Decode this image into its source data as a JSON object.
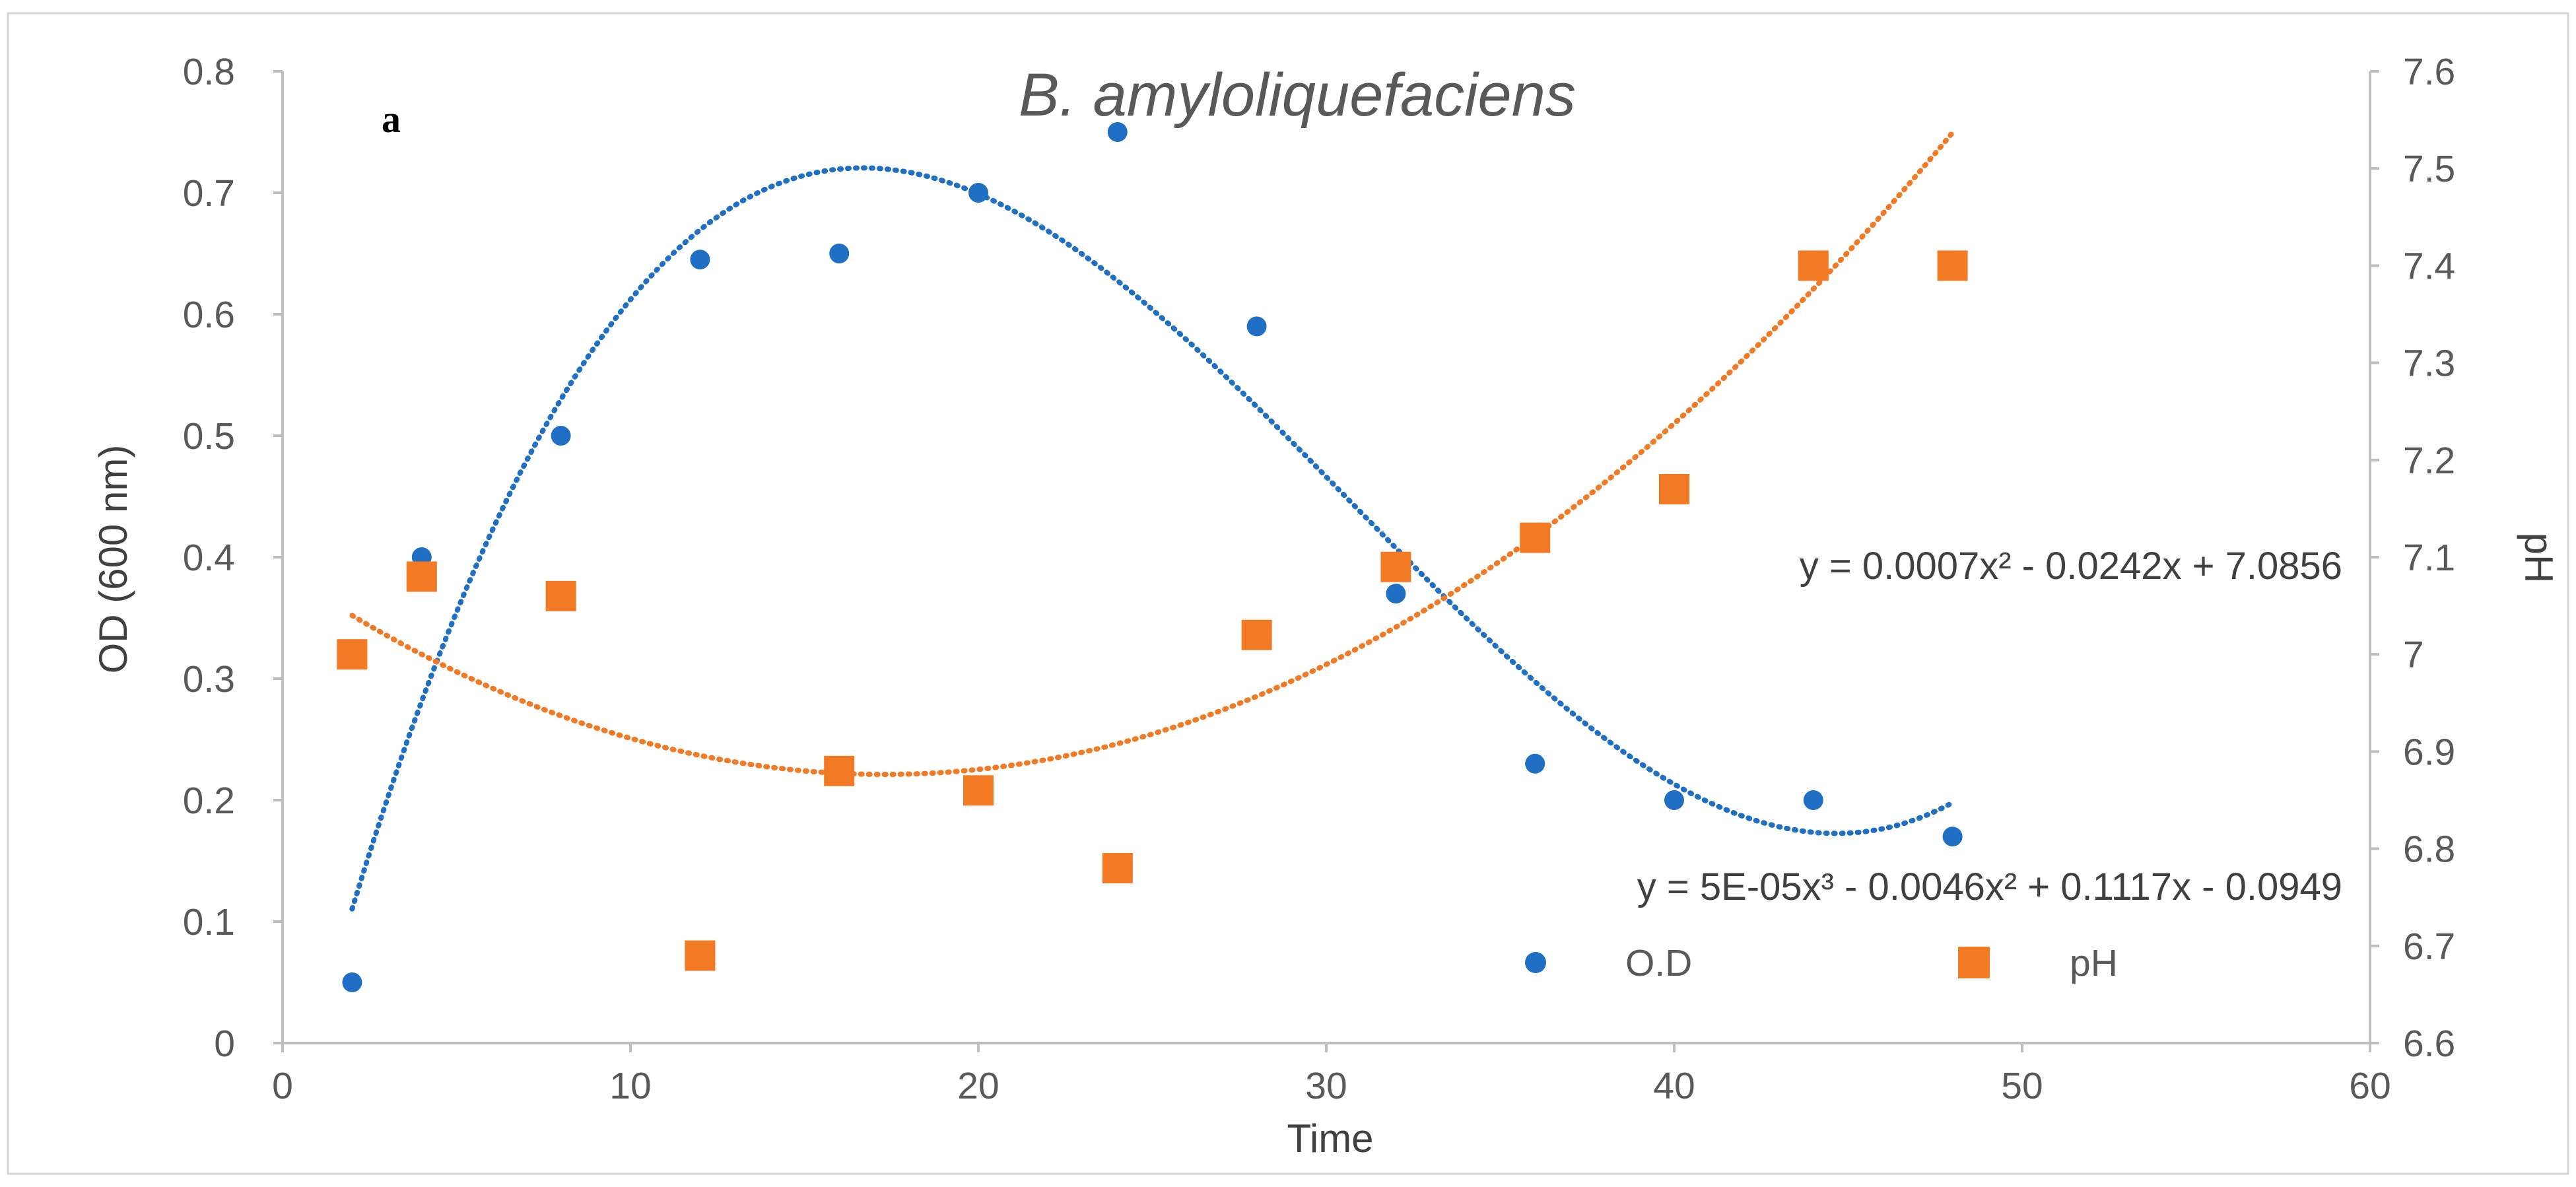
{
  "chart_data": {
    "type": "scatter",
    "title": "B. amyloliquefaciens",
    "panel_label": "a",
    "xlabel": "Time",
    "ylabel_left": "OD (600 nm)",
    "ylabel_right": "pH",
    "xlim": [
      0,
      60
    ],
    "ylim_left": [
      0,
      0.8
    ],
    "ylim_right": [
      6.6,
      7.6
    ],
    "x_ticks": [
      "0",
      "10",
      "20",
      "30",
      "40",
      "50",
      "60"
    ],
    "y_left_ticks": [
      "0",
      "0.1",
      "0.2",
      "0.3",
      "0.4",
      "0.5",
      "0.6",
      "0.7",
      "0.8"
    ],
    "y_right_ticks": [
      "6.6",
      "6.7",
      "6.8",
      "6.9",
      "7",
      "7.1",
      "7.2",
      "7.3",
      "7.4",
      "7.5",
      "7.6"
    ],
    "grid": false,
    "legend_position": "bottom-right",
    "series": [
      {
        "name": "O.D",
        "axis": "left",
        "marker": "circle",
        "color": "#1F6FC5",
        "x": [
          2,
          4,
          8,
          12,
          16,
          20,
          24,
          28,
          32,
          36,
          40,
          44,
          48
        ],
        "values": [
          0.05,
          0.4,
          0.5,
          0.645,
          0.65,
          0.7,
          0.75,
          0.59,
          0.37,
          0.23,
          0.2,
          0.2,
          0.17
        ]
      },
      {
        "name": "pH",
        "axis": "right",
        "marker": "square",
        "color": "#F27A24",
        "x": [
          2,
          4,
          8,
          12,
          16,
          20,
          24,
          28,
          32,
          36,
          40,
          44,
          48
        ],
        "values": [
          7.0,
          7.08,
          7.06,
          6.69,
          6.88,
          6.86,
          6.78,
          7.02,
          7.09,
          7.12,
          7.17,
          7.4,
          7.4
        ]
      }
    ],
    "trendlines": [
      {
        "series": "O.D",
        "axis": "left",
        "equation": "y = 5E-05x³ - 0.0046x² + 0.1117x - 0.0949",
        "coefficients": [
          -0.0949,
          0.1117,
          -0.0046,
          5e-05
        ],
        "x_range": [
          2,
          48
        ],
        "color": "#1F6FC5"
      },
      {
        "series": "pH",
        "axis": "right",
        "equation": "y = 0.0007x² - 0.0242x + 7.0856",
        "coefficients": [
          7.0856,
          -0.0242,
          0.0007
        ],
        "x_range": [
          2,
          48
        ],
        "color": "#F27A24"
      }
    ]
  }
}
